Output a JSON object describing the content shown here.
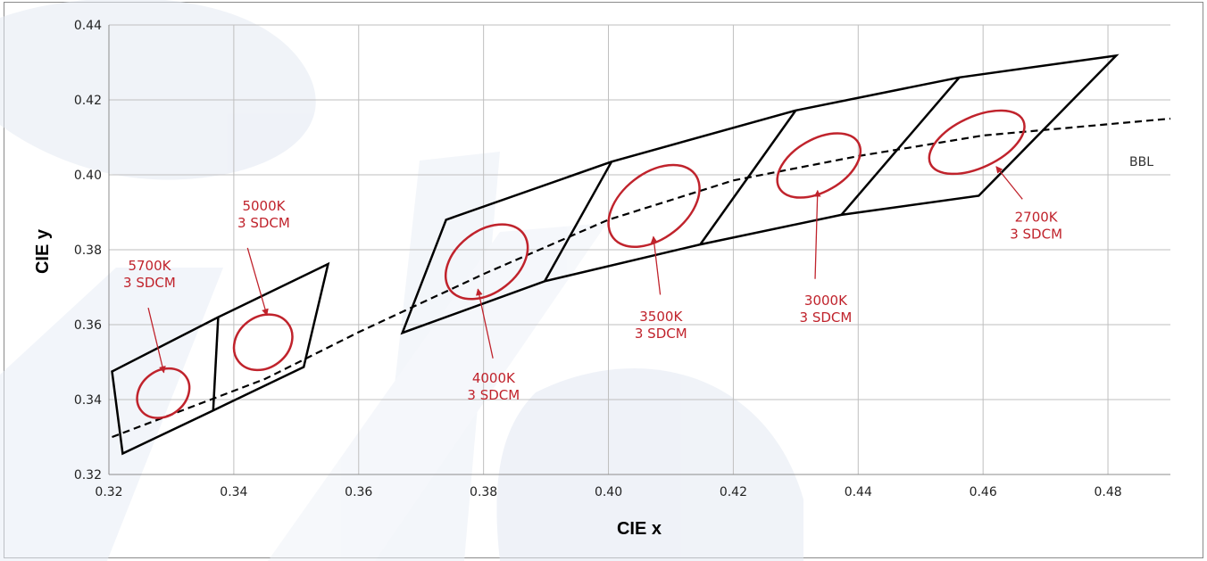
{
  "chart_data": {
    "type": "scatter",
    "xlabel": "CIE x",
    "ylabel": "CIE y",
    "xlim": [
      0.32,
      0.49
    ],
    "ylim": [
      0.32,
      0.44
    ],
    "x_ticks": [
      "0.32",
      "0.34",
      "0.36",
      "0.38",
      "0.40",
      "0.42",
      "0.44",
      "0.46",
      "0.48"
    ],
    "y_ticks": [
      "0.32",
      "0.34",
      "0.36",
      "0.38",
      "0.40",
      "0.42",
      "0.44"
    ],
    "grid": true,
    "colors": {
      "ellipse": "#c0232c",
      "label": "#c0232c",
      "quadrangle": "#000000",
      "bbl": "#000000",
      "grid": "#bfbfbf",
      "watermark": "#e8edf5"
    },
    "bbl": {
      "label": "BBL",
      "x": [
        0.3205,
        0.33,
        0.345,
        0.36,
        0.38,
        0.4,
        0.42,
        0.44,
        0.46,
        0.48,
        0.49
      ],
      "y": [
        0.33,
        0.336,
        0.3455,
        0.358,
        0.3735,
        0.388,
        0.3985,
        0.405,
        0.4105,
        0.4135,
        0.415
      ]
    },
    "quadrangle_groups": [
      {
        "vertices": [
          [
            0.3205,
            0.3475
          ],
          [
            0.3375,
            0.362
          ],
          [
            0.3551,
            0.3762
          ],
          [
            0.3512,
            0.3487
          ],
          [
            0.3367,
            0.3371
          ],
          [
            0.3222,
            0.3256
          ]
        ],
        "divisions": [
          [
            [
              0.3375,
              0.362
            ],
            [
              0.3367,
              0.3371
            ]
          ]
        ]
      },
      {
        "vertices": [
          [
            0.374,
            0.388
          ],
          [
            0.4005,
            0.4035
          ],
          [
            0.43,
            0.4172
          ],
          [
            0.4562,
            0.426
          ],
          [
            0.4813,
            0.4318
          ],
          [
            0.4593,
            0.3944
          ],
          [
            0.4373,
            0.3893
          ],
          [
            0.4147,
            0.3814
          ],
          [
            0.3898,
            0.3716
          ],
          [
            0.367,
            0.3578
          ]
        ],
        "divisions": [
          [
            [
              0.4005,
              0.4035
            ],
            [
              0.3898,
              0.3716
            ]
          ],
          [
            [
              0.43,
              0.4172
            ],
            [
              0.4147,
              0.3814
            ]
          ],
          [
            [
              0.4562,
              0.426
            ],
            [
              0.4373,
              0.3893
            ]
          ]
        ]
      }
    ],
    "ellipses": [
      {
        "cct": "5700K",
        "steps": "3 SDCM",
        "center": [
          0.3287,
          0.3417
        ],
        "rx": 0.0045,
        "ry": 0.006,
        "tilt": 38,
        "label_at": [
          0.3265,
          0.3745
        ],
        "arrow_from": [
          0.3263,
          0.3645
        ],
        "arrow_to": [
          0.3288,
          0.3472
        ]
      },
      {
        "cct": "5000K",
        "steps": "3 SDCM",
        "center": [
          0.3447,
          0.3553
        ],
        "rx": 0.005,
        "ry": 0.0068,
        "tilt": 38,
        "label_at": [
          0.3448,
          0.3905
        ],
        "arrow_from": [
          0.3422,
          0.3805
        ],
        "arrow_to": [
          0.3453,
          0.3625
        ]
      },
      {
        "cct": "4000K",
        "steps": "3 SDCM",
        "center": [
          0.3805,
          0.3768
        ],
        "rx": 0.0074,
        "ry": 0.0082,
        "tilt": 38,
        "label_at": [
          0.3816,
          0.3445
        ],
        "arrow_from": [
          0.3815,
          0.351
        ],
        "arrow_to": [
          0.3791,
          0.3695
        ]
      },
      {
        "cct": "3500K",
        "steps": "3 SDCM",
        "center": [
          0.4073,
          0.3917
        ],
        "rx": 0.0083,
        "ry": 0.0087,
        "tilt": 38,
        "label_at": [
          0.4084,
          0.3609
        ],
        "arrow_from": [
          0.4083,
          0.368
        ],
        "arrow_to": [
          0.4072,
          0.3835
        ]
      },
      {
        "cct": "3000K",
        "steps": "3 SDCM",
        "center": [
          0.4337,
          0.4025
        ],
        "rx": 0.0073,
        "ry": 0.007,
        "tilt": 30,
        "label_at": [
          0.4348,
          0.3652
        ],
        "arrow_from": [
          0.4331,
          0.3722
        ],
        "arrow_to": [
          0.4335,
          0.3958
        ]
      },
      {
        "cct": "2700K",
        "steps": "3 SDCM",
        "center": [
          0.459,
          0.4087
        ],
        "rx": 0.0082,
        "ry": 0.0068,
        "tilt": 25,
        "label_at": [
          0.4685,
          0.3875
        ],
        "arrow_from": [
          0.4663,
          0.3935
        ],
        "arrow_to": [
          0.4621,
          0.4022
        ]
      }
    ]
  }
}
